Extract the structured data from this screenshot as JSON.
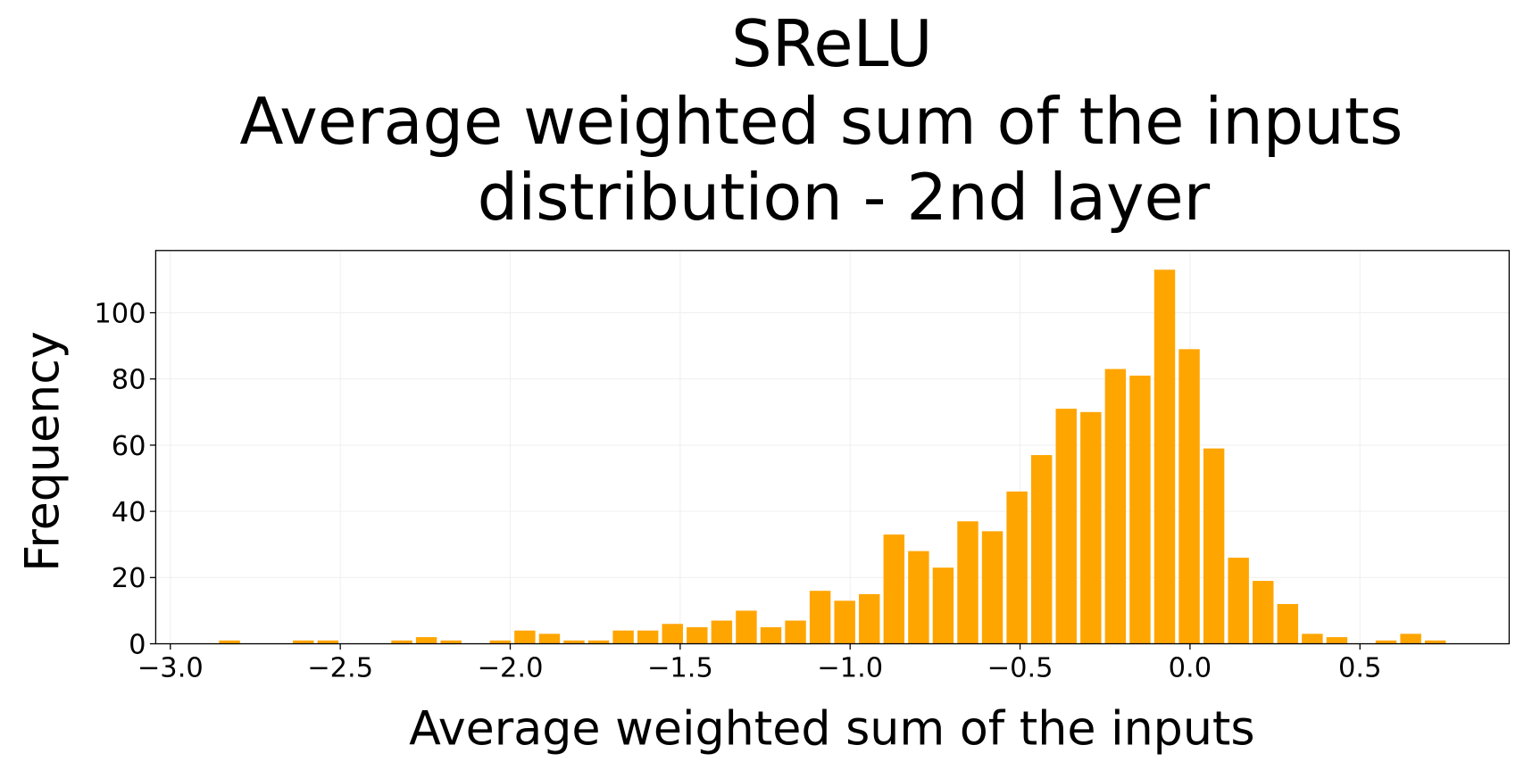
{
  "chart_data": {
    "type": "histogram",
    "title": [
      "SReLU",
      "Average weighted sum of the inputs",
      "distribution - 2nd layer"
    ],
    "x_label": "Average weighted sum of the inputs",
    "y_label": "Frequency",
    "bins": [
      -2.862,
      -2.7896,
      -2.7172,
      -2.6448,
      -2.5724,
      -2.5,
      -2.4276,
      -2.3552,
      -2.2828,
      -2.2104,
      -2.138,
      -2.0656,
      -1.9932,
      -1.9208,
      -1.8484,
      -1.776,
      -1.7036,
      -1.6312,
      -1.5588,
      -1.4864,
      -1.414,
      -1.3416,
      -1.2692,
      -1.1968,
      -1.1244,
      -1.052,
      -0.9796,
      -0.9072,
      -0.8348,
      -0.7624,
      -0.69,
      -0.6176,
      -0.5452,
      -0.4728,
      -0.4004,
      -0.328,
      -0.2556,
      -0.1832,
      -0.1108,
      -0.0384,
      0.034,
      0.1064,
      0.1788,
      0.2512,
      0.3236,
      0.396,
      0.4684,
      0.5408,
      0.6132,
      0.6856,
      0.758
    ],
    "values": [
      1,
      0,
      0,
      1,
      1,
      0,
      0,
      1,
      2,
      1,
      0,
      1,
      4,
      3,
      1,
      1,
      4,
      4,
      6,
      5,
      7,
      10,
      5,
      7,
      16,
      13,
      15,
      33,
      28,
      23,
      37,
      34,
      46,
      57,
      71,
      70,
      83,
      81,
      113,
      89,
      59,
      26,
      19,
      12,
      3,
      2,
      0,
      1,
      3,
      1
    ],
    "color": "#ffa500",
    "xlim": [
      -3.043,
      0.939
    ],
    "ylim": [
      0,
      118.8
    ],
    "xticks": [
      {
        "value": -3,
        "label": "−3.0"
      },
      {
        "value": -2.5,
        "label": "−2.5"
      },
      {
        "value": -2,
        "label": "−2.0"
      },
      {
        "value": -1.5,
        "label": "−1.5"
      },
      {
        "value": -1,
        "label": "−1.0"
      },
      {
        "value": -0.5,
        "label": "−0.5"
      },
      {
        "value": 0,
        "label": "0.0"
      },
      0.5
    ],
    "yticks": [
      0,
      20,
      40,
      60,
      80,
      100
    ],
    "grid": true
  }
}
